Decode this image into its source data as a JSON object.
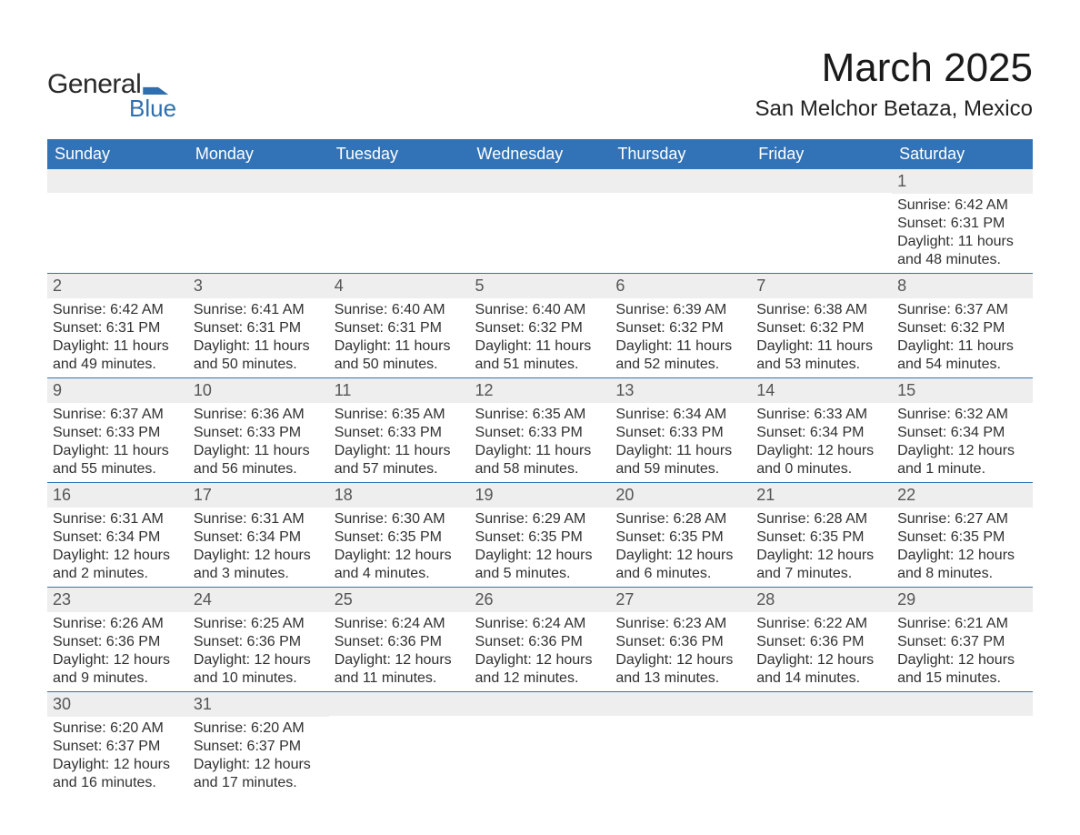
{
  "logo": {
    "text_top": "General",
    "text_bottom": "Blue"
  },
  "title": "March 2025",
  "location": "San Melchor Betaza, Mexico",
  "colors": {
    "header_bg": "#3273b7",
    "header_text": "#ffffff",
    "daynum_bg": "#eeeeee",
    "row_border": "#3273b7",
    "body_text": "#303030",
    "logo_blue": "#2f6faf"
  },
  "fonts": {
    "title_size_pt": 33,
    "location_size_pt": 18,
    "header_size_pt": 13.5,
    "body_size_pt": 12
  },
  "weekday_headers": [
    "Sunday",
    "Monday",
    "Tuesday",
    "Wednesday",
    "Thursday",
    "Friday",
    "Saturday"
  ],
  "labels": {
    "sunrise": "Sunrise:",
    "sunset": "Sunset:",
    "daylight": "Daylight:"
  },
  "weeks": [
    [
      null,
      null,
      null,
      null,
      null,
      null,
      {
        "n": 1,
        "sunrise": "6:42 AM",
        "sunset": "6:31 PM",
        "daylight": "11 hours and 48 minutes."
      }
    ],
    [
      {
        "n": 2,
        "sunrise": "6:42 AM",
        "sunset": "6:31 PM",
        "daylight": "11 hours and 49 minutes."
      },
      {
        "n": 3,
        "sunrise": "6:41 AM",
        "sunset": "6:31 PM",
        "daylight": "11 hours and 50 minutes."
      },
      {
        "n": 4,
        "sunrise": "6:40 AM",
        "sunset": "6:31 PM",
        "daylight": "11 hours and 50 minutes."
      },
      {
        "n": 5,
        "sunrise": "6:40 AM",
        "sunset": "6:32 PM",
        "daylight": "11 hours and 51 minutes."
      },
      {
        "n": 6,
        "sunrise": "6:39 AM",
        "sunset": "6:32 PM",
        "daylight": "11 hours and 52 minutes."
      },
      {
        "n": 7,
        "sunrise": "6:38 AM",
        "sunset": "6:32 PM",
        "daylight": "11 hours and 53 minutes."
      },
      {
        "n": 8,
        "sunrise": "6:37 AM",
        "sunset": "6:32 PM",
        "daylight": "11 hours and 54 minutes."
      }
    ],
    [
      {
        "n": 9,
        "sunrise": "6:37 AM",
        "sunset": "6:33 PM",
        "daylight": "11 hours and 55 minutes."
      },
      {
        "n": 10,
        "sunrise": "6:36 AM",
        "sunset": "6:33 PM",
        "daylight": "11 hours and 56 minutes."
      },
      {
        "n": 11,
        "sunrise": "6:35 AM",
        "sunset": "6:33 PM",
        "daylight": "11 hours and 57 minutes."
      },
      {
        "n": 12,
        "sunrise": "6:35 AM",
        "sunset": "6:33 PM",
        "daylight": "11 hours and 58 minutes."
      },
      {
        "n": 13,
        "sunrise": "6:34 AM",
        "sunset": "6:33 PM",
        "daylight": "11 hours and 59 minutes."
      },
      {
        "n": 14,
        "sunrise": "6:33 AM",
        "sunset": "6:34 PM",
        "daylight": "12 hours and 0 minutes."
      },
      {
        "n": 15,
        "sunrise": "6:32 AM",
        "sunset": "6:34 PM",
        "daylight": "12 hours and 1 minute."
      }
    ],
    [
      {
        "n": 16,
        "sunrise": "6:31 AM",
        "sunset": "6:34 PM",
        "daylight": "12 hours and 2 minutes."
      },
      {
        "n": 17,
        "sunrise": "6:31 AM",
        "sunset": "6:34 PM",
        "daylight": "12 hours and 3 minutes."
      },
      {
        "n": 18,
        "sunrise": "6:30 AM",
        "sunset": "6:35 PM",
        "daylight": "12 hours and 4 minutes."
      },
      {
        "n": 19,
        "sunrise": "6:29 AM",
        "sunset": "6:35 PM",
        "daylight": "12 hours and 5 minutes."
      },
      {
        "n": 20,
        "sunrise": "6:28 AM",
        "sunset": "6:35 PM",
        "daylight": "12 hours and 6 minutes."
      },
      {
        "n": 21,
        "sunrise": "6:28 AM",
        "sunset": "6:35 PM",
        "daylight": "12 hours and 7 minutes."
      },
      {
        "n": 22,
        "sunrise": "6:27 AM",
        "sunset": "6:35 PM",
        "daylight": "12 hours and 8 minutes."
      }
    ],
    [
      {
        "n": 23,
        "sunrise": "6:26 AM",
        "sunset": "6:36 PM",
        "daylight": "12 hours and 9 minutes."
      },
      {
        "n": 24,
        "sunrise": "6:25 AM",
        "sunset": "6:36 PM",
        "daylight": "12 hours and 10 minutes."
      },
      {
        "n": 25,
        "sunrise": "6:24 AM",
        "sunset": "6:36 PM",
        "daylight": "12 hours and 11 minutes."
      },
      {
        "n": 26,
        "sunrise": "6:24 AM",
        "sunset": "6:36 PM",
        "daylight": "12 hours and 12 minutes."
      },
      {
        "n": 27,
        "sunrise": "6:23 AM",
        "sunset": "6:36 PM",
        "daylight": "12 hours and 13 minutes."
      },
      {
        "n": 28,
        "sunrise": "6:22 AM",
        "sunset": "6:36 PM",
        "daylight": "12 hours and 14 minutes."
      },
      {
        "n": 29,
        "sunrise": "6:21 AM",
        "sunset": "6:37 PM",
        "daylight": "12 hours and 15 minutes."
      }
    ],
    [
      {
        "n": 30,
        "sunrise": "6:20 AM",
        "sunset": "6:37 PM",
        "daylight": "12 hours and 16 minutes."
      },
      {
        "n": 31,
        "sunrise": "6:20 AM",
        "sunset": "6:37 PM",
        "daylight": "12 hours and 17 minutes."
      },
      null,
      null,
      null,
      null,
      null
    ]
  ]
}
